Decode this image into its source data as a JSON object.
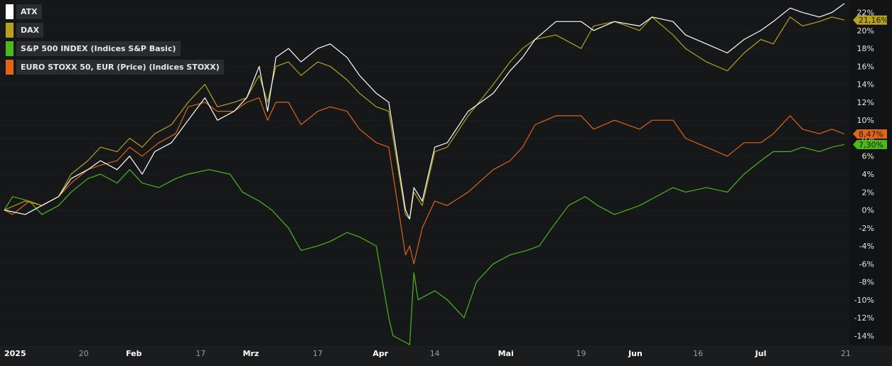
{
  "chart_data": {
    "type": "line",
    "ylim": [
      -15,
      23
    ],
    "y_ticks": [
      22,
      20,
      18,
      16,
      14,
      12,
      10,
      8,
      6,
      4,
      2,
      0,
      -2,
      -4,
      -6,
      -8,
      -10,
      -12,
      -14
    ],
    "y_tick_labels": [
      "22%",
      "20%",
      "18%",
      "16%",
      "14%",
      "12%",
      "10%",
      "8%",
      "6%",
      "4%",
      "2%",
      "0%",
      "-2%",
      "-4%",
      "-6%",
      "-8%",
      "-10%",
      "-12%",
      "-14%"
    ],
    "x_domain": [
      "2025-01-01",
      "2025-07-21"
    ],
    "x_ticks": [
      {
        "date": "2025-01-01",
        "label": "2025",
        "bold": true
      },
      {
        "date": "2025-01-20",
        "label": "20",
        "bold": false
      },
      {
        "date": "2025-02-01",
        "label": "Feb",
        "bold": true
      },
      {
        "date": "2025-02-17",
        "label": "17",
        "bold": false
      },
      {
        "date": "2025-03-01",
        "label": "Mrz",
        "bold": true
      },
      {
        "date": "2025-03-17",
        "label": "17",
        "bold": false
      },
      {
        "date": "2025-04-01",
        "label": "Apr",
        "bold": true
      },
      {
        "date": "2025-04-14",
        "label": "14",
        "bold": false
      },
      {
        "date": "2025-05-01",
        "label": "Mai",
        "bold": true
      },
      {
        "date": "2025-05-19",
        "label": "19",
        "bold": false
      },
      {
        "date": "2025-06-01",
        "label": "Jun",
        "bold": true
      },
      {
        "date": "2025-06-16",
        "label": "16",
        "bold": false
      },
      {
        "date": "2025-07-01",
        "label": "Jul",
        "bold": true
      },
      {
        "date": "2025-07-21",
        "label": "21",
        "bold": false
      }
    ],
    "series": [
      {
        "name": "ATX",
        "color": "#ffffff",
        "end_label": "",
        "points": [
          [
            "2025-01-01",
            0
          ],
          [
            "2025-01-06",
            -0.5
          ],
          [
            "2025-01-10",
            0.5
          ],
          [
            "2025-01-14",
            1.5
          ],
          [
            "2025-01-17",
            3.5
          ],
          [
            "2025-01-21",
            4.5
          ],
          [
            "2025-01-24",
            5.5
          ],
          [
            "2025-01-28",
            4.5
          ],
          [
            "2025-01-31",
            6
          ],
          [
            "2025-02-03",
            4
          ],
          [
            "2025-02-06",
            6.5
          ],
          [
            "2025-02-10",
            7.5
          ],
          [
            "2025-02-14",
            10
          ],
          [
            "2025-02-18",
            12.5
          ],
          [
            "2025-02-21",
            10
          ],
          [
            "2025-02-25",
            11
          ],
          [
            "2025-02-28",
            12.5
          ],
          [
            "2025-03-03",
            16
          ],
          [
            "2025-03-05",
            11
          ],
          [
            "2025-03-07",
            17
          ],
          [
            "2025-03-10",
            18
          ],
          [
            "2025-03-13",
            16.5
          ],
          [
            "2025-03-17",
            18
          ],
          [
            "2025-03-20",
            18.5
          ],
          [
            "2025-03-24",
            17
          ],
          [
            "2025-03-27",
            15
          ],
          [
            "2025-03-31",
            13
          ],
          [
            "2025-04-03",
            12
          ],
          [
            "2025-04-07",
            0
          ],
          [
            "2025-04-08",
            -1
          ],
          [
            "2025-04-09",
            2.5
          ],
          [
            "2025-04-11",
            1
          ],
          [
            "2025-04-14",
            7
          ],
          [
            "2025-04-17",
            7.5
          ],
          [
            "2025-04-22",
            11
          ],
          [
            "2025-04-28",
            13
          ],
          [
            "2025-05-02",
            15.5
          ],
          [
            "2025-05-05",
            17
          ],
          [
            "2025-05-08",
            19
          ],
          [
            "2025-05-13",
            21
          ],
          [
            "2025-05-19",
            21
          ],
          [
            "2025-05-22",
            20
          ],
          [
            "2025-05-27",
            21
          ],
          [
            "2025-06-02",
            20.5
          ],
          [
            "2025-06-05",
            21.5
          ],
          [
            "2025-06-10",
            21
          ],
          [
            "2025-06-13",
            19.5
          ],
          [
            "2025-06-18",
            18.5
          ],
          [
            "2025-06-23",
            17.5
          ],
          [
            "2025-06-27",
            19
          ],
          [
            "2025-07-01",
            20
          ],
          [
            "2025-07-04",
            21
          ],
          [
            "2025-07-08",
            22.5
          ],
          [
            "2025-07-11",
            22
          ],
          [
            "2025-07-15",
            21.5
          ],
          [
            "2025-07-18",
            22
          ],
          [
            "2025-07-21",
            23
          ]
        ]
      },
      {
        "name": "DAX",
        "color": "#b8a020",
        "end_label": "21,16%",
        "points": [
          [
            "2025-01-01",
            0
          ],
          [
            "2025-01-06",
            1
          ],
          [
            "2025-01-10",
            0.5
          ],
          [
            "2025-01-14",
            1.5
          ],
          [
            "2025-01-17",
            4
          ],
          [
            "2025-01-21",
            5.5
          ],
          [
            "2025-01-24",
            7
          ],
          [
            "2025-01-28",
            6.5
          ],
          [
            "2025-01-31",
            8
          ],
          [
            "2025-02-03",
            7
          ],
          [
            "2025-02-06",
            8.5
          ],
          [
            "2025-02-10",
            9.5
          ],
          [
            "2025-02-14",
            12
          ],
          [
            "2025-02-18",
            14
          ],
          [
            "2025-02-21",
            11.5
          ],
          [
            "2025-02-25",
            12
          ],
          [
            "2025-02-28",
            12.5
          ],
          [
            "2025-03-03",
            15
          ],
          [
            "2025-03-05",
            12
          ],
          [
            "2025-03-07",
            16
          ],
          [
            "2025-03-10",
            16.5
          ],
          [
            "2025-03-13",
            15
          ],
          [
            "2025-03-17",
            16.5
          ],
          [
            "2025-03-20",
            16
          ],
          [
            "2025-03-24",
            14.5
          ],
          [
            "2025-03-27",
            13
          ],
          [
            "2025-03-31",
            11.5
          ],
          [
            "2025-04-03",
            11
          ],
          [
            "2025-04-07",
            -0.5
          ],
          [
            "2025-04-08",
            -1
          ],
          [
            "2025-04-09",
            2
          ],
          [
            "2025-04-11",
            0.5
          ],
          [
            "2025-04-14",
            6.5
          ],
          [
            "2025-04-17",
            7
          ],
          [
            "2025-04-22",
            10.5
          ],
          [
            "2025-04-28",
            14
          ],
          [
            "2025-05-02",
            16.5
          ],
          [
            "2025-05-05",
            18
          ],
          [
            "2025-05-08",
            19
          ],
          [
            "2025-05-13",
            19.5
          ],
          [
            "2025-05-19",
            18
          ],
          [
            "2025-05-22",
            20.5
          ],
          [
            "2025-05-27",
            21
          ],
          [
            "2025-06-02",
            20
          ],
          [
            "2025-06-05",
            21.5
          ],
          [
            "2025-06-10",
            19.5
          ],
          [
            "2025-06-13",
            18
          ],
          [
            "2025-06-18",
            16.5
          ],
          [
            "2025-06-23",
            15.5
          ],
          [
            "2025-06-27",
            17.5
          ],
          [
            "2025-07-01",
            19
          ],
          [
            "2025-07-04",
            18.5
          ],
          [
            "2025-07-08",
            21.5
          ],
          [
            "2025-07-11",
            20.5
          ],
          [
            "2025-07-15",
            21
          ],
          [
            "2025-07-18",
            21.5
          ],
          [
            "2025-07-21",
            21.16
          ]
        ]
      },
      {
        "name": "S&P 500 INDEX (Indices S&P Basic)",
        "color": "#4cb81a",
        "end_label": "7,30%",
        "points": [
          [
            "2025-01-01",
            0
          ],
          [
            "2025-01-03",
            1.5
          ],
          [
            "2025-01-07",
            1
          ],
          [
            "2025-01-10",
            -0.5
          ],
          [
            "2025-01-14",
            0.5
          ],
          [
            "2025-01-17",
            2
          ],
          [
            "2025-01-21",
            3.5
          ],
          [
            "2025-01-24",
            4
          ],
          [
            "2025-01-28",
            3
          ],
          [
            "2025-01-31",
            4.5
          ],
          [
            "2025-02-03",
            3
          ],
          [
            "2025-02-07",
            2.5
          ],
          [
            "2025-02-11",
            3.5
          ],
          [
            "2025-02-14",
            4
          ],
          [
            "2025-02-19",
            4.5
          ],
          [
            "2025-02-24",
            4
          ],
          [
            "2025-02-27",
            2
          ],
          [
            "2025-03-03",
            1
          ],
          [
            "2025-03-06",
            0
          ],
          [
            "2025-03-10",
            -2
          ],
          [
            "2025-03-13",
            -4.5
          ],
          [
            "2025-03-17",
            -4
          ],
          [
            "2025-03-20",
            -3.5
          ],
          [
            "2025-03-24",
            -2.5
          ],
          [
            "2025-03-27",
            -3
          ],
          [
            "2025-03-31",
            -4
          ],
          [
            "2025-04-03",
            -12
          ],
          [
            "2025-04-04",
            -14
          ],
          [
            "2025-04-08",
            -15
          ],
          [
            "2025-04-09",
            -7
          ],
          [
            "2025-04-10",
            -10
          ],
          [
            "2025-04-14",
            -9
          ],
          [
            "2025-04-17",
            -10
          ],
          [
            "2025-04-21",
            -12
          ],
          [
            "2025-04-24",
            -8
          ],
          [
            "2025-04-28",
            -6
          ],
          [
            "2025-05-02",
            -5
          ],
          [
            "2025-05-06",
            -4.5
          ],
          [
            "2025-05-09",
            -4
          ],
          [
            "2025-05-12",
            -2
          ],
          [
            "2025-05-16",
            0.5
          ],
          [
            "2025-05-20",
            1.5
          ],
          [
            "2025-05-23",
            0.5
          ],
          [
            "2025-05-27",
            -0.5
          ],
          [
            "2025-06-02",
            0.5
          ],
          [
            "2025-06-06",
            1.5
          ],
          [
            "2025-06-10",
            2.5
          ],
          [
            "2025-06-13",
            2
          ],
          [
            "2025-06-18",
            2.5
          ],
          [
            "2025-06-23",
            2
          ],
          [
            "2025-06-27",
            4
          ],
          [
            "2025-07-01",
            5.5
          ],
          [
            "2025-07-04",
            6.5
          ],
          [
            "2025-07-08",
            6.5
          ],
          [
            "2025-07-11",
            7
          ],
          [
            "2025-07-15",
            6.5
          ],
          [
            "2025-07-18",
            7
          ],
          [
            "2025-07-21",
            7.3
          ]
        ]
      },
      {
        "name": "EURO STOXX 50, EUR (Price) (Indices STOXX)",
        "color": "#e0641a",
        "end_label": "8,47%",
        "points": [
          [
            "2025-01-01",
            0
          ],
          [
            "2025-01-03",
            -0.5
          ],
          [
            "2025-01-07",
            1
          ],
          [
            "2025-01-10",
            0.5
          ],
          [
            "2025-01-14",
            1.5
          ],
          [
            "2025-01-17",
            3
          ],
          [
            "2025-01-21",
            4.5
          ],
          [
            "2025-01-24",
            5
          ],
          [
            "2025-01-28",
            5.5
          ],
          [
            "2025-01-31",
            7
          ],
          [
            "2025-02-03",
            6
          ],
          [
            "2025-02-07",
            7.5
          ],
          [
            "2025-02-11",
            8.5
          ],
          [
            "2025-02-14",
            11.5
          ],
          [
            "2025-02-18",
            12
          ],
          [
            "2025-02-21",
            11
          ],
          [
            "2025-02-25",
            11
          ],
          [
            "2025-02-28",
            12
          ],
          [
            "2025-03-03",
            12.5
          ],
          [
            "2025-03-05",
            10
          ],
          [
            "2025-03-07",
            12
          ],
          [
            "2025-03-10",
            12
          ],
          [
            "2025-03-13",
            9.5
          ],
          [
            "2025-03-17",
            11
          ],
          [
            "2025-03-20",
            11.5
          ],
          [
            "2025-03-24",
            11
          ],
          [
            "2025-03-27",
            9
          ],
          [
            "2025-03-31",
            7.5
          ],
          [
            "2025-04-03",
            7
          ],
          [
            "2025-04-07",
            -5
          ],
          [
            "2025-04-08",
            -4
          ],
          [
            "2025-04-09",
            -6
          ],
          [
            "2025-04-11",
            -2
          ],
          [
            "2025-04-14",
            1
          ],
          [
            "2025-04-17",
            0.5
          ],
          [
            "2025-04-22",
            2
          ],
          [
            "2025-04-28",
            4.5
          ],
          [
            "2025-05-02",
            5.5
          ],
          [
            "2025-05-05",
            7
          ],
          [
            "2025-05-08",
            9.5
          ],
          [
            "2025-05-13",
            10.5
          ],
          [
            "2025-05-19",
            10.5
          ],
          [
            "2025-05-22",
            9
          ],
          [
            "2025-05-27",
            10
          ],
          [
            "2025-06-02",
            9
          ],
          [
            "2025-06-05",
            10
          ],
          [
            "2025-06-10",
            10
          ],
          [
            "2025-06-13",
            8
          ],
          [
            "2025-06-18",
            7
          ],
          [
            "2025-06-23",
            6
          ],
          [
            "2025-06-27",
            7.5
          ],
          [
            "2025-07-01",
            7.5
          ],
          [
            "2025-07-04",
            8.5
          ],
          [
            "2025-07-08",
            10.5
          ],
          [
            "2025-07-11",
            9
          ],
          [
            "2025-07-15",
            8.5
          ],
          [
            "2025-07-18",
            9
          ],
          [
            "2025-07-21",
            8.47
          ]
        ]
      }
    ]
  }
}
